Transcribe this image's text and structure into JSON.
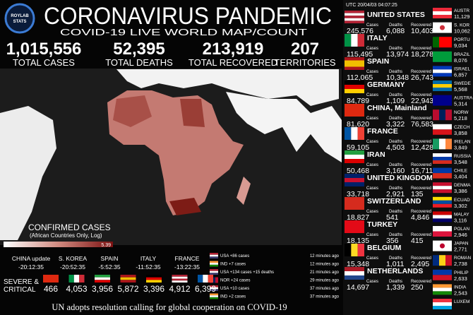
{
  "header": {
    "logo": [
      "ROYLAB",
      "STATS"
    ],
    "title": "CORONAVIRUS PANDEMIC",
    "subtitle": "COVID-19 LIVE WORLD MAP/COUNT"
  },
  "totals": [
    {
      "value": "1,015,556",
      "label": "TOTAL CASES"
    },
    {
      "value": "52,395",
      "label": "TOTAL DEATHS"
    },
    {
      "value": "213,919",
      "label": "TOTAL RECOVERED"
    },
    {
      "value": "207",
      "label": "TERRITORIES"
    }
  ],
  "map": {
    "legend_title": "CONFIRMED CASES",
    "legend_subtitle": "(African Countries Only, Log)",
    "scale_min": "0",
    "scale_max": "5.39"
  },
  "updates": [
    {
      "country": "CHINA update",
      "time": "-20:12:35"
    },
    {
      "country": "S. KOREA",
      "time": "-20:52:35"
    },
    {
      "country": "SPAIN",
      "time": "-5:52:35"
    },
    {
      "country": "ITALY",
      "time": "-11:52:35"
    },
    {
      "country": "FRANCE",
      "time": "-13:22:35"
    }
  ],
  "news": [
    {
      "text": "USA +86 cases",
      "time": "12 minutes ago"
    },
    {
      "text": "IND +7 cases",
      "time": "12 minutes ago"
    },
    {
      "text": "USA +134 cases +15 deaths",
      "time": "21 minutes ago"
    },
    {
      "text": "NOR +24 cases",
      "time": "29 minutes ago"
    },
    {
      "text": "USA +10 cases",
      "time": "37 minutes ago"
    },
    {
      "text": "IND +2 cases",
      "time": "37 minutes ago"
    }
  ],
  "severe": {
    "label": [
      "SEVERE &",
      "CRITICAL"
    ],
    "values": [
      "466",
      "4,053",
      "3,956",
      "5,872",
      "3,396",
      "4,912",
      "6,399"
    ]
  },
  "ticker": "UN adopts resolution calling for global cooperation on COVID-19",
  "sidebar": {
    "timestamp": "UTC 20/04/03 04:07:25",
    "col_labels": [
      "Cases",
      "Deaths",
      "Recovered"
    ],
    "countries": [
      {
        "name": "UNITED STATES",
        "cases": "245,576",
        "deaths": "6,088",
        "recovered": "10,403"
      },
      {
        "name": "ITALY",
        "cases": "115,495",
        "deaths": "13,974",
        "recovered": "18,278"
      },
      {
        "name": "SPAIN",
        "cases": "112,065",
        "deaths": "10,348",
        "recovered": "26,743"
      },
      {
        "name": "GERMANY",
        "cases": "84,789",
        "deaths": "1,109",
        "recovered": "22,943"
      },
      {
        "name": "CHINA, Mainland",
        "cases": "81,620",
        "deaths": "3,322",
        "recovered": "76,583"
      },
      {
        "name": "FRANCE",
        "cases": "59,105",
        "deaths": "4,503",
        "recovered": "12,428"
      },
      {
        "name": "IRAN",
        "cases": "50,468",
        "deaths": "3,160",
        "recovered": "16,711"
      },
      {
        "name": "UNITED KINGDOM",
        "cases": "33,718",
        "deaths": "2,921",
        "recovered": "135"
      },
      {
        "name": "SWITZERLAND",
        "cases": "18,827",
        "deaths": "541",
        "recovered": "4,846"
      },
      {
        "name": "TURKEY",
        "cases": "18,135",
        "deaths": "356",
        "recovered": "415"
      },
      {
        "name": "BELGIUM",
        "cases": "15,348",
        "deaths": "1,011",
        "recovered": "2,495"
      },
      {
        "name": "NETHERLANDS",
        "cases": "14,697",
        "deaths": "1,339",
        "recovered": "250"
      }
    ]
  },
  "mini": [
    {
      "name": "AUSTR",
      "cases": "11,129"
    },
    {
      "name": "S. KOR",
      "cases": "10,062"
    },
    {
      "name": "PORTU",
      "cases": "9,034"
    },
    {
      "name": "BRAZIL",
      "cases": "8,076"
    },
    {
      "name": "ISRAEL",
      "cases": "6,857"
    },
    {
      "name": "SWEDE",
      "cases": "5,568"
    },
    {
      "name": "AUSTRA",
      "cases": "5,314"
    },
    {
      "name": "NORW",
      "cases": "5,218"
    },
    {
      "name": "CZECH",
      "cases": "3,858"
    },
    {
      "name": "IRELAN",
      "cases": "3,849"
    },
    {
      "name": "RUSSIA",
      "cases": "3,548"
    },
    {
      "name": "CHILE",
      "cases": "3,404"
    },
    {
      "name": "DENMA",
      "cases": "3,386"
    },
    {
      "name": "ECUAD",
      "cases": "3,302"
    },
    {
      "name": "MALAY",
      "cases": "3,116"
    },
    {
      "name": "POLAN",
      "cases": "2,946"
    },
    {
      "name": "JAPAN",
      "cases": "2,771"
    },
    {
      "name": "ROMAN",
      "cases": "2,738"
    },
    {
      "name": "PHILIP",
      "cases": "2,633"
    },
    {
      "name": "INDIA",
      "cases": "2,543"
    },
    {
      "name": "LUXEM",
      "cases": ""
    }
  ]
}
